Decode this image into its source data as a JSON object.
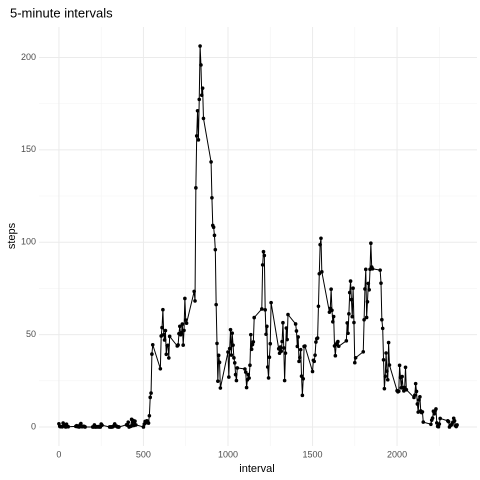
{
  "chart_data": {
    "type": "line",
    "title": "5-minute intervals",
    "x_label": "interval",
    "y_label": "steps",
    "xlim": [
      -117.75,
      2472.75
    ],
    "ylim": [
      -10.31,
      216.48
    ],
    "xticks": [
      0,
      500,
      1000,
      1500,
      2000
    ],
    "yticks": [
      0,
      50,
      100,
      150,
      200
    ],
    "x_minor_ticks": [
      250,
      750,
      1250,
      1750,
      2250
    ],
    "y_minor_ticks": [
      25,
      75,
      125,
      175
    ],
    "grid": true,
    "markers": true,
    "series": [
      {
        "color": "#000000",
        "x": [
          0,
          5,
          10,
          15,
          20,
          25,
          30,
          35,
          40,
          45,
          50,
          55,
          100,
          105,
          110,
          115,
          120,
          125,
          130,
          135,
          140,
          145,
          150,
          155,
          200,
          205,
          210,
          215,
          220,
          225,
          230,
          235,
          240,
          245,
          250,
          255,
          300,
          305,
          310,
          315,
          320,
          325,
          330,
          335,
          340,
          345,
          350,
          355,
          400,
          405,
          410,
          415,
          420,
          425,
          430,
          435,
          440,
          445,
          450,
          455,
          500,
          505,
          510,
          515,
          520,
          525,
          530,
          535,
          540,
          545,
          550,
          555,
          600,
          605,
          610,
          615,
          620,
          625,
          630,
          635,
          640,
          645,
          650,
          655,
          700,
          705,
          710,
          715,
          720,
          725,
          730,
          735,
          740,
          745,
          750,
          755,
          800,
          805,
          810,
          815,
          820,
          825,
          830,
          835,
          840,
          845,
          850,
          855,
          900,
          905,
          910,
          915,
          920,
          925,
          930,
          935,
          940,
          945,
          950,
          955,
          1000,
          1005,
          1010,
          1015,
          1020,
          1025,
          1030,
          1035,
          1040,
          1045,
          1050,
          1055,
          1100,
          1105,
          1110,
          1115,
          1120,
          1125,
          1130,
          1135,
          1140,
          1145,
          1150,
          1155,
          1200,
          1205,
          1210,
          1215,
          1220,
          1225,
          1230,
          1235,
          1240,
          1245,
          1250,
          1255,
          1300,
          1305,
          1310,
          1315,
          1320,
          1325,
          1330,
          1335,
          1340,
          1345,
          1350,
          1355,
          1400,
          1405,
          1410,
          1415,
          1420,
          1425,
          1430,
          1435,
          1440,
          1445,
          1450,
          1455,
          1500,
          1505,
          1510,
          1515,
          1520,
          1525,
          1530,
          1535,
          1540,
          1545,
          1550,
          1555,
          1600,
          1605,
          1610,
          1615,
          1620,
          1625,
          1630,
          1635,
          1640,
          1645,
          1650,
          1655,
          1700,
          1705,
          1710,
          1715,
          1720,
          1725,
          1730,
          1735,
          1740,
          1745,
          1750,
          1755,
          1800,
          1805,
          1810,
          1815,
          1820,
          1825,
          1830,
          1835,
          1840,
          1845,
          1850,
          1855,
          1900,
          1905,
          1910,
          1915,
          1920,
          1925,
          1930,
          1935,
          1940,
          1945,
          1950,
          1955,
          2000,
          2005,
          2010,
          2015,
          2020,
          2025,
          2030,
          2035,
          2040,
          2045,
          2050,
          2055,
          2100,
          2105,
          2110,
          2115,
          2120,
          2125,
          2130,
          2135,
          2140,
          2145,
          2150,
          2155,
          2200,
          2205,
          2210,
          2215,
          2220,
          2225,
          2230,
          2235,
          2240,
          2245,
          2250,
          2255,
          2300,
          2305,
          2310,
          2315,
          2320,
          2325,
          2330,
          2335,
          2340,
          2345,
          2350,
          2355
        ],
        "values": [
          1.72,
          0.34,
          0.13,
          0.15,
          0.08,
          2.09,
          0.53,
          0.87,
          0,
          1.47,
          0.3,
          0.13,
          0.32,
          0.68,
          0.15,
          0.34,
          0,
          1.11,
          1.83,
          0.17,
          0.17,
          0.38,
          0.26,
          0,
          0,
          0,
          1.13,
          0,
          0,
          0.13,
          0,
          0.23,
          0,
          0,
          1.55,
          0.94,
          0,
          0,
          0,
          0,
          0.21,
          0.62,
          1.62,
          0.58,
          0.49,
          0.08,
          0,
          0,
          1.19,
          0.94,
          2.57,
          0,
          0.34,
          0.36,
          4.11,
          0.66,
          3.49,
          0.83,
          3.11,
          1.11,
          0,
          1.57,
          3,
          2.25,
          3.32,
          2.96,
          2.09,
          6.06,
          16.02,
          18.34,
          39.45,
          44.49,
          31.49,
          49.26,
          53.77,
          63.45,
          49.96,
          47.08,
          52.15,
          39.34,
          44.02,
          44.17,
          37.36,
          49.04,
          43.81,
          44.38,
          50.51,
          54.51,
          49.92,
          50.98,
          55.68,
          44.32,
          52.26,
          69.55,
          57.85,
          56.15,
          73.38,
          68.21,
          129.43,
          157.53,
          171.15,
          155.4,
          177.3,
          206.17,
          195.92,
          179.57,
          183.4,
          167.02,
          143.45,
          124.04,
          109.11,
          108.11,
          103.72,
          95.96,
          66.21,
          45.23,
          24.79,
          38.75,
          34.98,
          21.06,
          40.57,
          26.98,
          42.42,
          52.66,
          38.92,
          50.79,
          44.28,
          37.42,
          34.7,
          28.34,
          25.09,
          31.94,
          31.36,
          29.68,
          21.32,
          25.55,
          28.38,
          26.47,
          33.43,
          49.98,
          42.04,
          44.6,
          46.04,
          59.19,
          63.87,
          87.7,
          94.85,
          92.77,
          63.4,
          50.17,
          54.47,
          32.42,
          26.53,
          37.74,
          45.06,
          67.28,
          42.34,
          39.89,
          43.26,
          40.98,
          46.25,
          56.43,
          42.75,
          25.13,
          39.96,
          53.55,
          47.32,
          60.81,
          55.75,
          51.96,
          43.58,
          48.7,
          35.47,
          37.55,
          41.85,
          27.51,
          17.11,
          26.08,
          43.62,
          43.77,
          30.02,
          36.08,
          35.49,
          38.85,
          45.96,
          47.75,
          48.13,
          65.32,
          82.91,
          98.66,
          102.11,
          83.96,
          62.13,
          64.13,
          74.55,
          63.17,
          56.91,
          59.77,
          43.87,
          38.57,
          44.66,
          45.45,
          46.21,
          43.68,
          46.62,
          56.3,
          50.72,
          61.23,
          72.72,
          78.94,
          68.94,
          59.66,
          75.09,
          56.51,
          34.77,
          37.45,
          40.68,
          58.02,
          74.7,
          85.32,
          59.26,
          67.77,
          77.7,
          74.25,
          85.34,
          99.45,
          86.58,
          85.6,
          84.87,
          77.83,
          58.04,
          53.36,
          36.32,
          20.72,
          27.4,
          40.02,
          30.21,
          25.55,
          45.66,
          33.53,
          19.62,
          19.02,
          19.34,
          33.34,
          26.81,
          21.17,
          27.3,
          21.34,
          19.55,
          21.32,
          32.3,
          20.15,
          15.94,
          17.23,
          23.45,
          19.25,
          12.45,
          8.02,
          14.66,
          16.3,
          8.68,
          7.79,
          8.13,
          2.62,
          1.45,
          3.68,
          4.81,
          8.51,
          7.08,
          8.7,
          9.75,
          2.21,
          0.32,
          0.11,
          1.6,
          4.6,
          3.3,
          2.85,
          0,
          0.83,
          0.96,
          1.58,
          2.6,
          4.7,
          3.3,
          0.64,
          0.23,
          1.08
        ]
      }
    ]
  }
}
